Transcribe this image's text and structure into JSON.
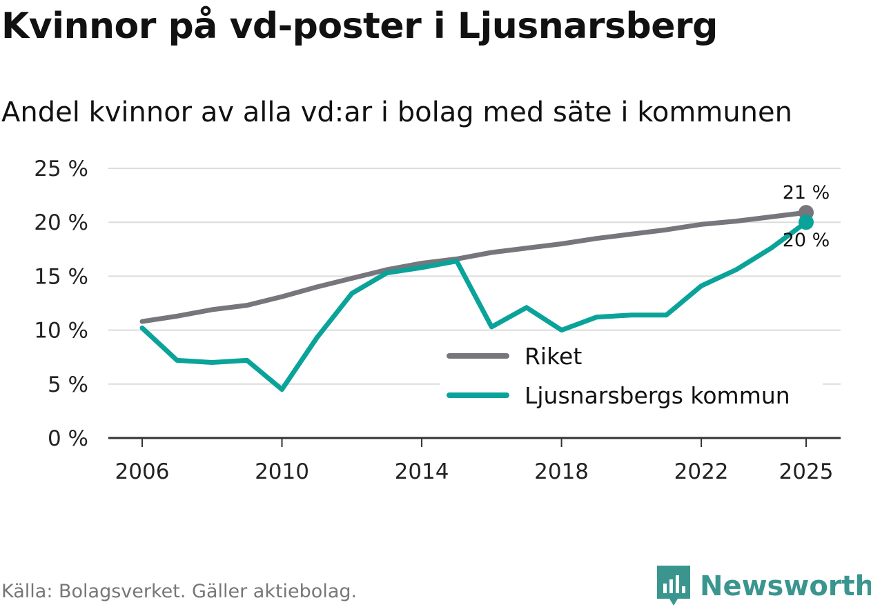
{
  "title": "Kvinnor på vd-poster i Ljusnarsberg",
  "subtitle": "Andel kvinnor av alla vd:ar i bolag med säte i kommunen",
  "source": "Källa: Bolagsverket. Gäller aktiebolag.",
  "brand": "Newsworthy",
  "colors": {
    "riket": "#76767c",
    "kommun": "#0aa39a",
    "grid": "#dcdcdc",
    "axis": "#333333",
    "brand": "#3a958f"
  },
  "chart_data": {
    "type": "line",
    "x": [
      2006,
      2007,
      2008,
      2009,
      2010,
      2011,
      2012,
      2013,
      2014,
      2015,
      2016,
      2017,
      2018,
      2019,
      2020,
      2021,
      2022,
      2023,
      2024,
      2025
    ],
    "series": [
      {
        "name": "Riket",
        "color": "#76767c",
        "values": [
          10.8,
          11.3,
          11.9,
          12.3,
          13.1,
          14.0,
          14.8,
          15.6,
          16.2,
          16.6,
          17.2,
          17.6,
          18.0,
          18.5,
          18.9,
          19.3,
          19.8,
          20.1,
          20.5,
          20.9
        ],
        "end_label": "21 %"
      },
      {
        "name": "Ljusnarsbergs kommun",
        "color": "#0aa39a",
        "values": [
          10.2,
          7.2,
          7.0,
          7.2,
          4.5,
          9.3,
          13.4,
          15.3,
          15.8,
          16.4,
          10.3,
          12.1,
          10.0,
          11.2,
          11.4,
          11.4,
          14.1,
          15.6,
          17.6,
          20.0
        ],
        "end_label": "20 %"
      }
    ],
    "xticks": [
      2006,
      2010,
      2014,
      2018,
      2022,
      2025
    ],
    "xtick_labels": [
      "2006",
      "2010",
      "2014",
      "2018",
      "2022",
      "2025"
    ],
    "yticks": [
      0,
      5,
      10,
      15,
      20,
      25
    ],
    "ytick_labels": [
      "0 %",
      "5 %",
      "10 %",
      "15 %",
      "20 %",
      "25 %"
    ],
    "xlim": [
      2006,
      2025
    ],
    "ylim": [
      0,
      25
    ],
    "grid": true,
    "legend": [
      "Riket",
      "Ljusnarsbergs kommun"
    ],
    "legend_position": "bottom-right",
    "xlabel": "",
    "ylabel": ""
  }
}
